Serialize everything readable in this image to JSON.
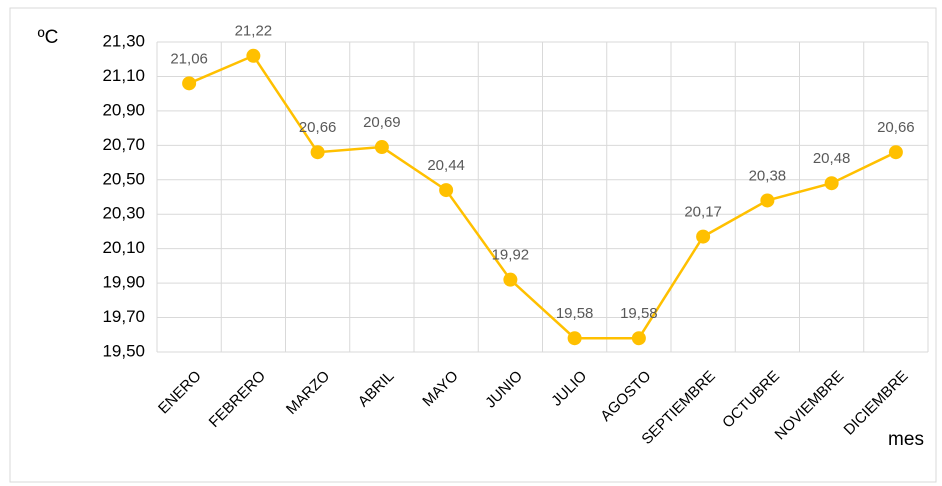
{
  "chart_data": {
    "type": "line",
    "y_label": "ºC",
    "x_label": "mes",
    "categories": [
      "ENERO",
      "FEBRERO",
      "MARZO",
      "ABRIL",
      "MAYO",
      "JUNIO",
      "JULIO",
      "AGOSTO",
      "SEPTIEMBRE",
      "OCTUBRE",
      "NOVIEMBRE",
      "DICIEMBRE"
    ],
    "values": [
      21.06,
      21.22,
      20.66,
      20.69,
      20.44,
      19.92,
      19.58,
      19.58,
      20.17,
      20.38,
      20.48,
      20.66
    ],
    "value_labels": [
      "21,06",
      "21,22",
      "20,66",
      "20,69",
      "20,44",
      "19,92",
      "19,58",
      "19,58",
      "20,17",
      "20,38",
      "20,48",
      "20,66"
    ],
    "color": "#ffc000",
    "ylim": [
      19.5,
      21.3
    ],
    "yticks": [
      {
        "value": 19.5,
        "label": "19,50"
      },
      {
        "value": 19.7,
        "label": "19,70"
      },
      {
        "value": 19.9,
        "label": "19,90"
      },
      {
        "value": 20.1,
        "label": "20,10"
      },
      {
        "value": 20.3,
        "label": "20,30"
      },
      {
        "value": 20.5,
        "label": "20,50"
      },
      {
        "value": 20.7,
        "label": "20,70"
      },
      {
        "value": 20.9,
        "label": "20,90"
      },
      {
        "value": 21.1,
        "label": "21,10"
      },
      {
        "value": 21.3,
        "label": "21,30"
      }
    ],
    "grid": true
  }
}
